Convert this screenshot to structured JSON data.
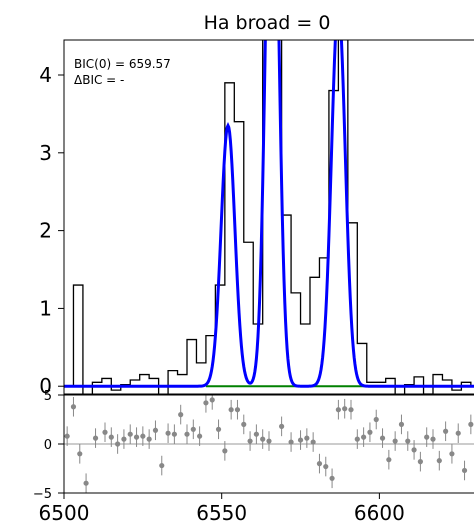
{
  "chart_data": [
    {
      "type": "line",
      "title": "Ha broad = 0",
      "xlabel": "",
      "ylabel": "",
      "xlim": [
        6500,
        6630
      ],
      "ylim": [
        -0.1,
        4.45
      ],
      "yticks": [
        0,
        1,
        2,
        3,
        4
      ],
      "annotations": [
        "BIC(0) = 659.57",
        "ΔBIC = -"
      ],
      "colors": {
        "data": "#000000",
        "model": "#0000ff",
        "continuum": "#008000"
      },
      "series": [
        {
          "style": "step",
          "x": [
            6500,
            6503,
            6506,
            6509,
            6512,
            6515,
            6518,
            6521,
            6524,
            6527,
            6530,
            6533,
            6536,
            6539,
            6542,
            6545,
            6548,
            6551,
            6554,
            6557,
            6560,
            6563,
            6566,
            6569,
            6572,
            6575,
            6578,
            6581,
            6584,
            6587,
            6590,
            6593,
            6596,
            6599,
            6602,
            6605,
            6608,
            6611,
            6614,
            6617,
            6620,
            6623,
            6626,
            6629
          ],
          "y": [
            0,
            1.3,
            -0.35,
            0.05,
            0.1,
            -0.05,
            0.02,
            0.08,
            0.15,
            0.1,
            -0.2,
            0.2,
            0.15,
            0.6,
            0.3,
            0.65,
            1.3,
            3.9,
            3.4,
            1.85,
            0.8,
            7.5,
            6.0,
            2.2,
            1.2,
            0.8,
            1.4,
            1.65,
            3.8,
            5.5,
            2.1,
            0.55,
            0.05,
            0.05,
            0.1,
            -0.15,
            0.02,
            0.12,
            -0.1,
            0.15,
            0.08,
            -0.05,
            0.05,
            0.0
          ]
        },
        {
          "style": "model",
          "lines": [
            {
              "center": 6552,
              "amp": 3.35,
              "sigma": 2.2
            },
            {
              "center": 6566,
              "amp": 8.0,
              "sigma": 2.0
            },
            {
              "center": 6587,
              "amp": 4.9,
              "sigma": 2.2
            }
          ]
        },
        {
          "style": "continuum",
          "x": [
            6545,
            6600
          ],
          "y": [
            0,
            0
          ]
        }
      ]
    },
    {
      "type": "scatter",
      "xlim": [
        6500,
        6630
      ],
      "ylim": [
        -5,
        5
      ],
      "yticks": [
        5,
        0,
        -5
      ],
      "yticklabels": [
        "5",
        "0",
        "−5"
      ],
      "xticks": [
        6500,
        6550,
        6600
      ],
      "points": {
        "x": [
          6501,
          6503,
          6505,
          6507,
          6510,
          6513,
          6515,
          6517,
          6519,
          6521,
          6523,
          6525,
          6527,
          6529,
          6531,
          6533,
          6535,
          6537,
          6539,
          6541,
          6543,
          6545,
          6547,
          6549,
          6551,
          6553,
          6555,
          6557,
          6559,
          6561,
          6563,
          6565,
          6569,
          6572,
          6575,
          6577,
          6579,
          6581,
          6583,
          6585,
          6587,
          6589,
          6591,
          6593,
          6595,
          6597,
          6599,
          6601,
          6603,
          6605,
          6607,
          6609,
          6611,
          6613,
          6615,
          6617,
          6619,
          6621,
          6623,
          6625,
          6627,
          6629
        ],
        "y": [
          0.8,
          3.8,
          -1.0,
          -4.0,
          0.6,
          1.2,
          0.7,
          0.0,
          0.5,
          1.0,
          0.7,
          0.8,
          0.5,
          1.4,
          -2.2,
          1.1,
          1.0,
          3.0,
          1.0,
          1.5,
          0.8,
          4.2,
          4.5,
          1.5,
          -0.7,
          3.5,
          3.5,
          2.0,
          0.3,
          1.0,
          0.5,
          0.3,
          1.8,
          0.2,
          0.4,
          0.6,
          0.2,
          -2.0,
          -2.3,
          -3.5,
          3.5,
          3.6,
          3.5,
          0.5,
          0.7,
          1.2,
          2.5,
          0.6,
          -1.6,
          0.3,
          2.0,
          0.3,
          -0.6,
          -1.8,
          0.7,
          0.5,
          -1.7,
          1.3,
          -1.0,
          1.1,
          -2.7,
          2.0
        ],
        "err": 1.0
      },
      "reference_line": 0
    }
  ]
}
